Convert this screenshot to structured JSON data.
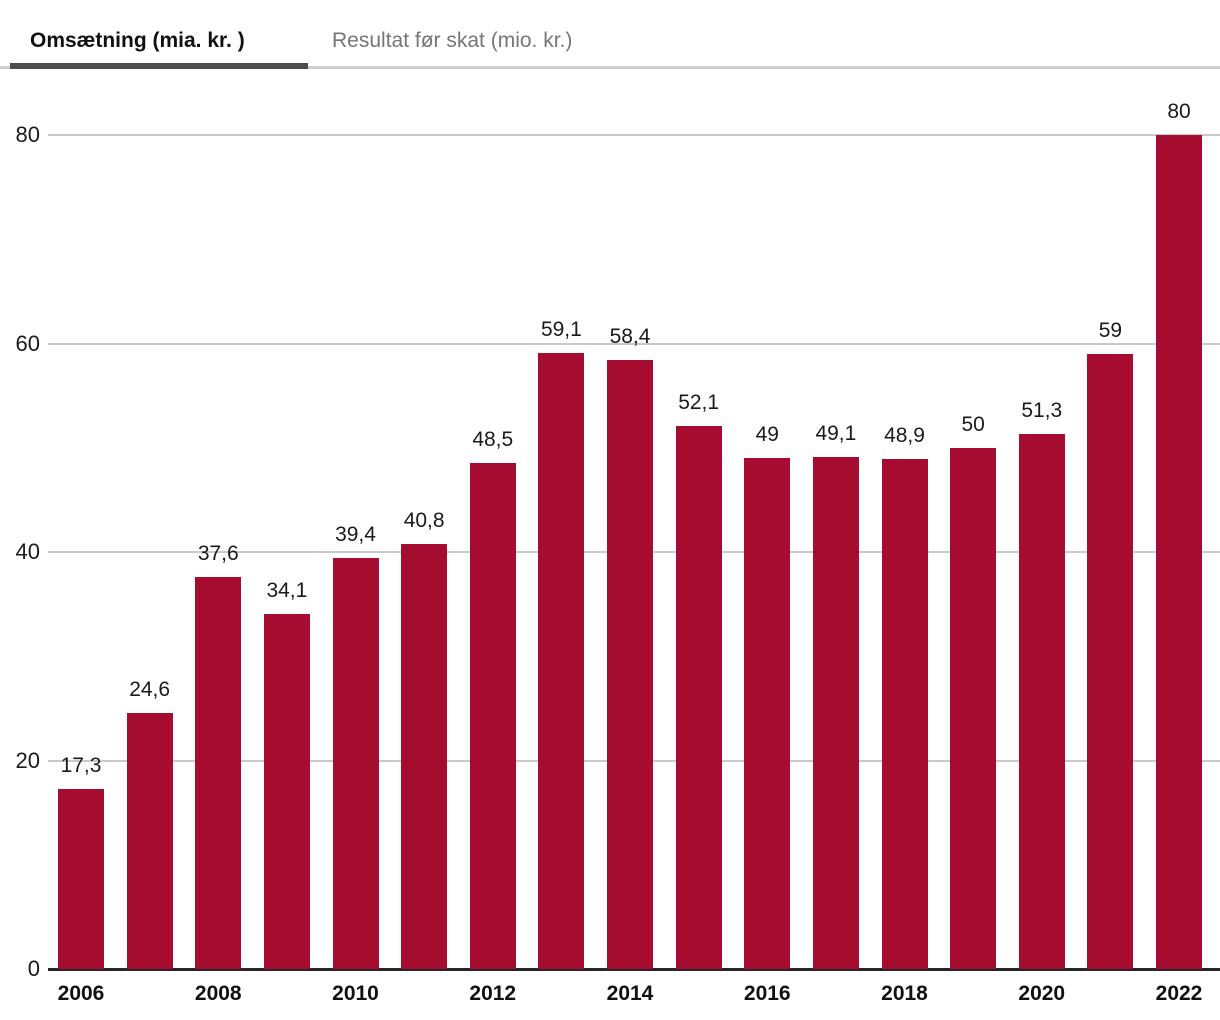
{
  "tabs": [
    {
      "label": "Omsætning (mia. kr. )",
      "active": true
    },
    {
      "label": "Resultat før skat (mio. kr.)",
      "active": false
    }
  ],
  "colors": {
    "bar": "#a50c30",
    "gridline": "#c9c9c9",
    "axis": "#262626",
    "active_tab_underline": "#4d4d4d",
    "inactive_tab_text": "#76767a",
    "label_text": "#1a1a1a"
  },
  "chart_data": {
    "type": "bar",
    "title": "Omsætning (mia. kr. )",
    "categories": [
      2006,
      2007,
      2008,
      2009,
      2010,
      2011,
      2012,
      2013,
      2014,
      2015,
      2016,
      2017,
      2018,
      2019,
      2020,
      2021,
      2022
    ],
    "values": [
      17.3,
      24.6,
      37.6,
      34.1,
      39.4,
      40.8,
      48.5,
      59.1,
      58.4,
      52.1,
      49,
      49.1,
      48.9,
      50,
      51.3,
      59,
      80
    ],
    "value_labels": [
      "17,3",
      "24,6",
      "37,6",
      "34,1",
      "39,4",
      "40,8",
      "48,5",
      "59,1",
      "58,4",
      "52,1",
      "49",
      "49,1",
      "48,9",
      "50",
      "51,3",
      "59",
      "80"
    ],
    "x_tick_labels": [
      "2006",
      "2008",
      "2010",
      "2012",
      "2014",
      "2016",
      "2018",
      "2020",
      "2022"
    ],
    "xlabel": "",
    "ylabel": "",
    "yticks": [
      0,
      20,
      40,
      60,
      80
    ],
    "ylim": [
      0,
      80
    ],
    "grid": true,
    "legend": "none"
  }
}
